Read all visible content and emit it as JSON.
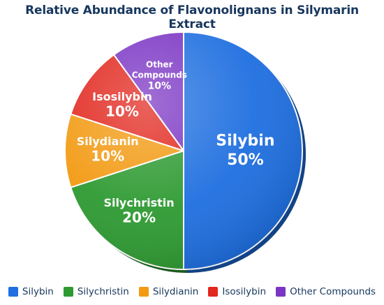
{
  "chart_data": {
    "type": "pie",
    "title": "Relative Abundance of Flavonolignans in Silymarin Extract",
    "slices": [
      {
        "name": "Silybin",
        "value": 50,
        "label": "50%",
        "color": "#1f6fe0"
      },
      {
        "name": "Silychristin",
        "value": 20,
        "label": "20%",
        "color": "#2e9a32"
      },
      {
        "name": "Silydianin",
        "value": 10,
        "label": "10%",
        "color": "#f29a12"
      },
      {
        "name": "Isosilybin",
        "value": 10,
        "label": "10%",
        "color": "#e1271e"
      },
      {
        "name": "Other Compounds",
        "value": 10,
        "label": "10%",
        "color": "#7b35c4"
      }
    ],
    "slice_label_lines": {
      "Other Compounds": [
        "Other",
        "Compounds"
      ]
    },
    "legend": {
      "placement": "bottom",
      "entries": [
        "Silybin",
        "Silychristin",
        "Silydianin",
        "Isosilybin",
        "Other Compounds"
      ]
    }
  }
}
